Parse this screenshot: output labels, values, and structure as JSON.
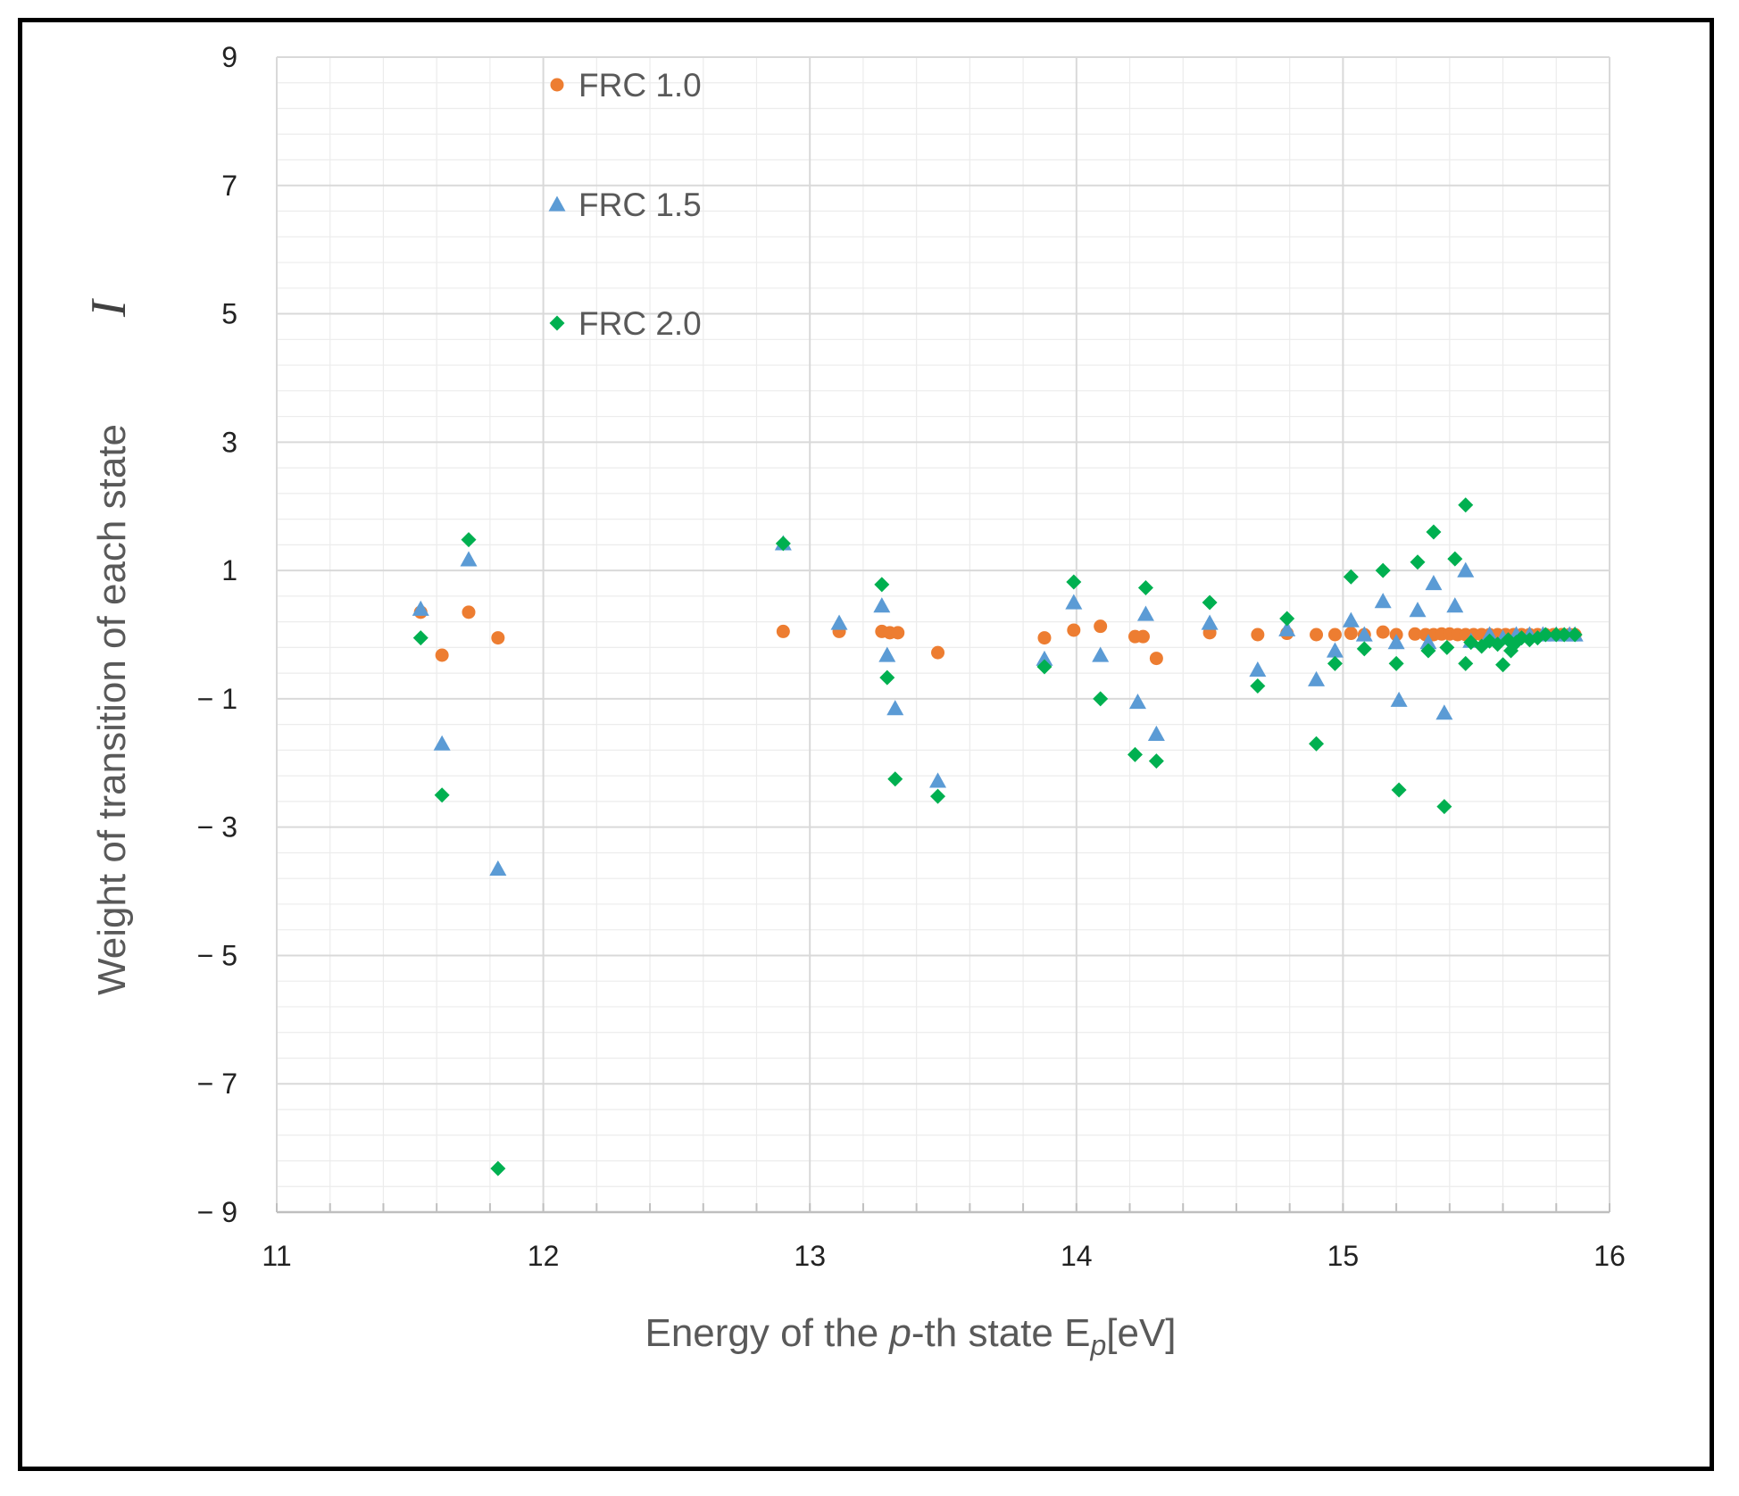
{
  "chart_data": {
    "type": "scatter",
    "title": "",
    "xlabel": {
      "before": "Energy of the ",
      "italic": "p",
      "after": "-th state E",
      "sub": "p",
      "tail": "[eV]"
    },
    "ylabel": "Weight of transition of each state",
    "ylabel_symbol": "I",
    "xlim": [
      11,
      16
    ],
    "ylim": [
      -9,
      9
    ],
    "x_ticks": [
      11,
      12,
      13,
      14,
      15,
      16
    ],
    "y_ticks": [
      9,
      7,
      5,
      3,
      1,
      -1,
      -3,
      -5,
      -7,
      -9
    ],
    "y_tick_labels": [
      "9",
      "7",
      "5",
      "3",
      "1",
      "− 1",
      "− 3",
      "− 5",
      "− 7",
      "− 9"
    ],
    "grid": true,
    "legend_position": "top-left",
    "series": [
      {
        "name": "FRC 1.0",
        "marker": "circle",
        "color": "#ED7D31",
        "points": [
          [
            11.54,
            0.35
          ],
          [
            11.62,
            -0.32
          ],
          [
            11.72,
            0.35
          ],
          [
            11.83,
            -0.05
          ],
          [
            12.9,
            0.05
          ],
          [
            13.11,
            0.05
          ],
          [
            13.27,
            0.05
          ],
          [
            13.3,
            0.03
          ],
          [
            13.33,
            0.03
          ],
          [
            13.48,
            -0.28
          ],
          [
            13.88,
            -0.05
          ],
          [
            13.99,
            0.07
          ],
          [
            14.09,
            0.13
          ],
          [
            14.22,
            -0.03
          ],
          [
            14.25,
            -0.03
          ],
          [
            14.3,
            -0.37
          ],
          [
            14.5,
            0.03
          ],
          [
            14.68,
            0.0
          ],
          [
            14.79,
            0.02
          ],
          [
            14.9,
            0.0
          ],
          [
            14.97,
            0.0
          ],
          [
            15.03,
            0.02
          ],
          [
            15.08,
            0.0
          ],
          [
            15.15,
            0.04
          ],
          [
            15.2,
            0.0
          ],
          [
            15.27,
            0.01
          ],
          [
            15.31,
            0.0
          ],
          [
            15.34,
            0.0
          ],
          [
            15.37,
            0.01
          ],
          [
            15.4,
            0.01
          ],
          [
            15.43,
            0.0
          ],
          [
            15.46,
            0.0
          ],
          [
            15.49,
            0.0
          ],
          [
            15.52,
            0.0
          ],
          [
            15.55,
            0.0
          ],
          [
            15.58,
            0.0
          ],
          [
            15.61,
            0.0
          ],
          [
            15.64,
            0.0
          ],
          [
            15.67,
            0.0
          ],
          [
            15.7,
            0.0
          ],
          [
            15.73,
            0.0
          ],
          [
            15.76,
            0.0
          ],
          [
            15.79,
            0.0
          ],
          [
            15.82,
            0.0
          ],
          [
            15.85,
            0.0
          ],
          [
            15.87,
            0.0
          ]
        ]
      },
      {
        "name": "FRC 1.5",
        "marker": "triangle",
        "color": "#5B9BD5",
        "points": [
          [
            11.54,
            0.4
          ],
          [
            11.62,
            -1.7
          ],
          [
            11.72,
            1.17
          ],
          [
            11.83,
            -3.65
          ],
          [
            12.9,
            1.42
          ],
          [
            13.11,
            0.18
          ],
          [
            13.27,
            0.45
          ],
          [
            13.29,
            -0.32
          ],
          [
            13.32,
            -1.15
          ],
          [
            13.48,
            -2.28
          ],
          [
            13.88,
            -0.38
          ],
          [
            13.99,
            0.5
          ],
          [
            14.09,
            -0.32
          ],
          [
            14.23,
            -1.05
          ],
          [
            14.26,
            0.32
          ],
          [
            14.3,
            -1.55
          ],
          [
            14.5,
            0.18
          ],
          [
            14.68,
            -0.55
          ],
          [
            14.79,
            0.08
          ],
          [
            14.9,
            -0.7
          ],
          [
            14.97,
            -0.25
          ],
          [
            15.03,
            0.22
          ],
          [
            15.08,
            0.0
          ],
          [
            15.15,
            0.52
          ],
          [
            15.2,
            -0.12
          ],
          [
            15.21,
            -1.02
          ],
          [
            15.28,
            0.38
          ],
          [
            15.32,
            -0.12
          ],
          [
            15.34,
            0.8
          ],
          [
            15.38,
            -1.22
          ],
          [
            15.42,
            0.45
          ],
          [
            15.46,
            1.0
          ],
          [
            15.48,
            -0.1
          ],
          [
            15.55,
            0.0
          ],
          [
            15.6,
            -0.05
          ],
          [
            15.65,
            0.0
          ],
          [
            15.7,
            0.0
          ],
          [
            15.75,
            0.0
          ],
          [
            15.8,
            0.0
          ],
          [
            15.85,
            0.0
          ],
          [
            15.87,
            0.0
          ]
        ]
      },
      {
        "name": "FRC 2.0",
        "marker": "diamond",
        "color": "#00B050",
        "points": [
          [
            11.54,
            -0.05
          ],
          [
            11.62,
            -2.5
          ],
          [
            11.72,
            1.48
          ],
          [
            11.83,
            -8.32
          ],
          [
            12.9,
            1.42
          ],
          [
            13.27,
            0.78
          ],
          [
            13.29,
            -0.67
          ],
          [
            13.32,
            -2.25
          ],
          [
            13.48,
            -2.52
          ],
          [
            13.88,
            -0.5
          ],
          [
            13.99,
            0.82
          ],
          [
            14.09,
            -1.0
          ],
          [
            14.22,
            -1.87
          ],
          [
            14.26,
            0.73
          ],
          [
            14.3,
            -1.97
          ],
          [
            14.5,
            0.5
          ],
          [
            14.68,
            -0.8
          ],
          [
            14.79,
            0.25
          ],
          [
            14.9,
            -1.7
          ],
          [
            14.97,
            -0.45
          ],
          [
            15.03,
            0.9
          ],
          [
            15.08,
            -0.22
          ],
          [
            15.15,
            1.0
          ],
          [
            15.2,
            -0.45
          ],
          [
            15.21,
            -2.42
          ],
          [
            15.28,
            1.13
          ],
          [
            15.32,
            -0.25
          ],
          [
            15.34,
            1.6
          ],
          [
            15.38,
            -2.68
          ],
          [
            15.39,
            -0.2
          ],
          [
            15.42,
            1.18
          ],
          [
            15.46,
            2.02
          ],
          [
            15.46,
            -0.45
          ],
          [
            15.48,
            -0.12
          ],
          [
            15.52,
            -0.18
          ],
          [
            15.55,
            -0.1
          ],
          [
            15.58,
            -0.15
          ],
          [
            15.6,
            -0.47
          ],
          [
            15.62,
            -0.08
          ],
          [
            15.63,
            -0.25
          ],
          [
            15.65,
            -0.12
          ],
          [
            15.67,
            -0.05
          ],
          [
            15.7,
            -0.08
          ],
          [
            15.73,
            -0.05
          ],
          [
            15.76,
            0.0
          ],
          [
            15.8,
            0.0
          ],
          [
            15.83,
            0.0
          ],
          [
            15.87,
            0.0
          ]
        ]
      }
    ]
  }
}
